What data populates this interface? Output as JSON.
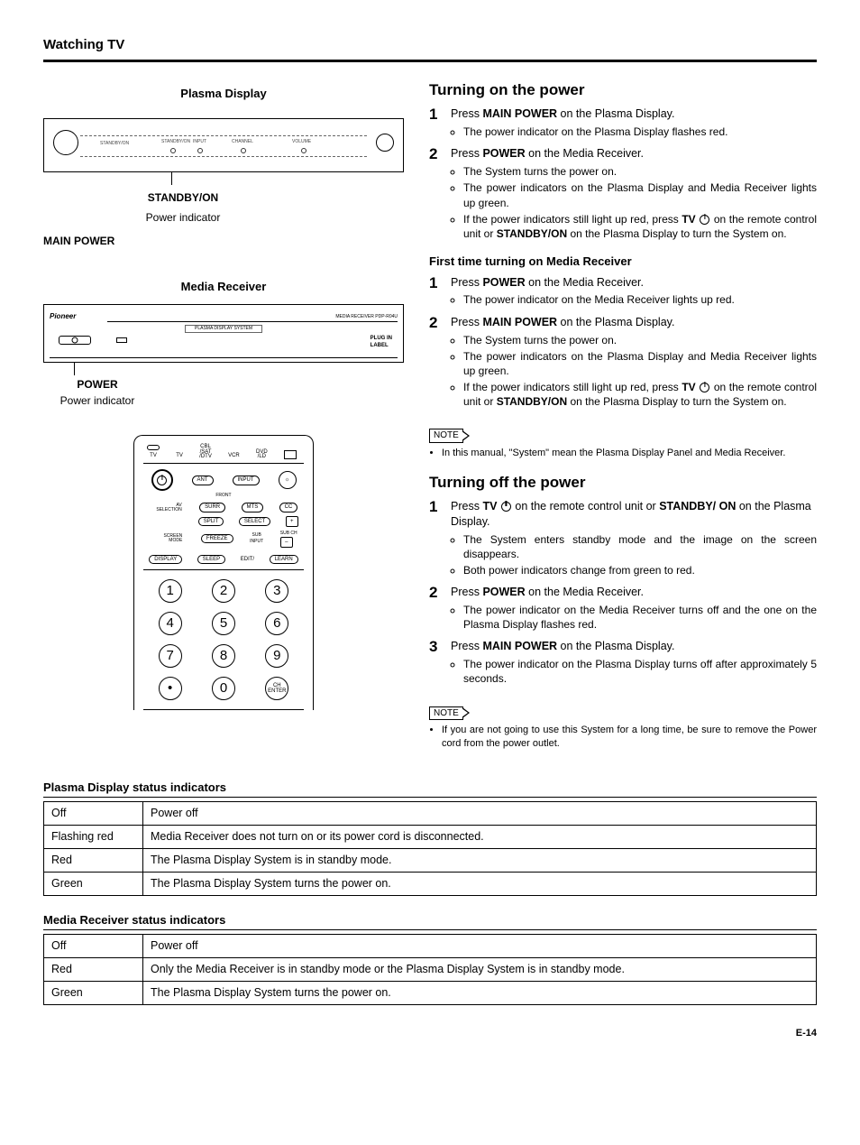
{
  "section_title": "Watching TV",
  "left": {
    "plasma_label": "Plasma Display",
    "plasma_panel": {
      "standbyon_mini": "STANDBY/ON",
      "standbyon_label": "STANDBY/ON",
      "input_mini": "INPUT",
      "channel_mini": "CHANNEL",
      "volume_mini": "VOLUME",
      "power_indicator": "Power indicator",
      "main_power": "MAIN POWER"
    },
    "media_label": "Media Receiver",
    "media_panel": {
      "brand": "Pioneer",
      "model": "MEDIA RECEIVER PDP-R04U",
      "mid": "PLASMA DISPLAY SYSTEM",
      "plugin": "PLUG IN\nLABEL",
      "power_label": "POWER",
      "power_indicator": "Power indicator"
    },
    "remote": {
      "top_mode1": "TV",
      "top_mode2": "TV",
      "top_mode3": "CBL\n/SAT\n/DTV",
      "top_mode4": "VCR",
      "top_mode5": "DVD\n/LD",
      "r1_ant": "ANT",
      "r1_input": "INPUT",
      "r1_front": "FRONT",
      "r2_left": "AV\nSELECTION",
      "r2_surr": "SURR",
      "r2_mts": "MTS",
      "r2_cc": "CC",
      "r3_split": "SPLIT",
      "r3_select": "SELECT",
      "r3_plus": "+",
      "r4_left": "SCREEN\nMODE",
      "r4_freeze": "FREEZE",
      "r4_sub": "SUB\nINPUT",
      "r4_subch": "SUB CH",
      "r4_minus": "–",
      "r5_display": "DISPLAY",
      "r5_sleep": "SLEEP",
      "r5_edit": "EDIT/",
      "r5_learn": "LEARN",
      "num1": "1",
      "num2": "2",
      "num3": "3",
      "num4": "4",
      "num5": "5",
      "num6": "6",
      "num7": "7",
      "num8": "8",
      "num9": "9",
      "num_dot": "•",
      "num0": "0",
      "num_ch": "CH\nENTER"
    }
  },
  "right": {
    "h_on": "Turning on the power",
    "on_steps": [
      {
        "num": "1",
        "lead_a": "Press ",
        "lead_b": "MAIN POWER",
        "lead_c": " on the Plasma Display.",
        "bullets": [
          "The power indicator on the Plasma Display flashes red."
        ]
      },
      {
        "num": "2",
        "lead_a": "Press ",
        "lead_b": "POWER",
        "lead_c": " on the Media Receiver.",
        "bullets": [
          "The System turns the power on.",
          "The power indicators on the Plasma Display and Media Receiver lights up green."
        ],
        "bullet3_parts": [
          "If the power indicators still light up red, press ",
          "TV",
          " on the remote control unit or ",
          "STANDBY/ON",
          " on the Plasma Display to turn the System on."
        ]
      }
    ],
    "first_time": "First time turning on Media Receiver",
    "ft_steps": [
      {
        "num": "1",
        "lead_a": "Press ",
        "lead_b": "POWER",
        "lead_c": " on the Media Receiver.",
        "bullets": [
          "The power indicator on the Media Receiver lights up red."
        ]
      },
      {
        "num": "2",
        "lead_a": "Press ",
        "lead_b": "MAIN POWER",
        "lead_c": " on the Plasma Display.",
        "bullets": [
          "The System turns the power on.",
          "The power indicators on the Plasma Display and Media Receiver lights up green."
        ],
        "bullet3_parts": [
          "If the power indicators still light up red, press ",
          "TV",
          " on the remote control unit or ",
          "STANDBY/ON",
          " on the Plasma Display to turn the System on."
        ]
      }
    ],
    "note_label": "NOTE",
    "note_on": "In this manual, \"System\" mean the Plasma Display Panel and Media Receiver.",
    "h_off": "Turning off the power",
    "off_steps": [
      {
        "num": "1",
        "lead_parts": [
          "Press ",
          "TV",
          " on the remote control unit or ",
          "STANDBY/ ON",
          " on the Plasma Display."
        ],
        "bullets": [
          "The System enters standby mode and the image on the screen disappears.",
          "Both power indicators change from green to red."
        ]
      },
      {
        "num": "2",
        "lead_a": "Press ",
        "lead_b": "POWER",
        "lead_c": " on the Media Receiver.",
        "bullets": [
          "The power indicator on the Media Receiver turns off and the one on the Plasma Display flashes red."
        ]
      },
      {
        "num": "3",
        "lead_a": "Press ",
        "lead_b": "MAIN POWER",
        "lead_c": " on the Plasma Display.",
        "bullets": [
          "The power indicator on the Plasma Display turns off after approximately 5 seconds."
        ]
      }
    ],
    "note_off": "If you are not going to use this System for a long time, be sure to remove the Power cord from the power outlet."
  },
  "tables": {
    "t1_title": "Plasma Display status indicators",
    "t1_rows": [
      [
        "Off",
        "Power off"
      ],
      [
        "Flashing red",
        "Media Receiver does not turn on or its power cord is disconnected."
      ],
      [
        "Red",
        "The Plasma Display System is in standby mode."
      ],
      [
        "Green",
        "The Plasma Display System turns the power on."
      ]
    ],
    "t2_title": "Media Receiver status indicators",
    "t2_rows": [
      [
        "Off",
        "Power off"
      ],
      [
        "Red",
        "Only the Media Receiver is in standby mode or the Plasma Display System is in standby mode."
      ],
      [
        "Green",
        "The Plasma Display System turns the power on."
      ]
    ]
  },
  "page_num": "E-14"
}
